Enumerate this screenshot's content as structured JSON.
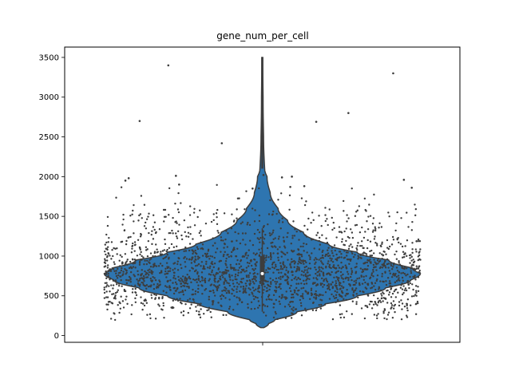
{
  "chart_data": {
    "type": "violin",
    "title": "gene_num_per_cell",
    "xlabel": "",
    "ylabel": "",
    "ylim": [
      -85,
      3630
    ],
    "yticks": [
      0,
      500,
      1000,
      1500,
      2000,
      2500,
      3000,
      3500
    ],
    "ytick_labels": [
      "0",
      "500",
      "1000",
      "1500",
      "2000",
      "2500",
      "3000",
      "3500"
    ],
    "grid": false,
    "legend": "none",
    "series": [
      {
        "summary": {
          "min": 100,
          "q1": 700,
          "median": 780,
          "q3": 1000,
          "max": 3500,
          "whisker_low": 300,
          "whisker_high": 1350
        },
        "density_profile": [
          [
            100,
            0.01
          ],
          [
            150,
            0.04
          ],
          [
            200,
            0.08
          ],
          [
            300,
            0.22
          ],
          [
            400,
            0.4
          ],
          [
            500,
            0.6
          ],
          [
            600,
            0.78
          ],
          [
            700,
            0.94
          ],
          [
            780,
            1.0
          ],
          [
            850,
            0.95
          ],
          [
            950,
            0.8
          ],
          [
            1050,
            0.6
          ],
          [
            1150,
            0.42
          ],
          [
            1300,
            0.26
          ],
          [
            1450,
            0.16
          ],
          [
            1600,
            0.1
          ],
          [
            1800,
            0.05
          ],
          [
            2000,
            0.03
          ],
          [
            2100,
            0.015
          ],
          [
            2500,
            0.008
          ],
          [
            3000,
            0.005
          ],
          [
            3500,
            0.003
          ]
        ],
        "outliers": [
          3400,
          3300,
          2800,
          2700,
          2690,
          2420,
          2020,
          2010,
          2000,
          1990,
          1980,
          1960,
          1950,
          1900,
          1880,
          1870,
          1860,
          1850
        ]
      }
    ],
    "fill_color": "#2e75b0",
    "edge_color": "#3d3d3d",
    "point_color": "#3d3d3d"
  }
}
